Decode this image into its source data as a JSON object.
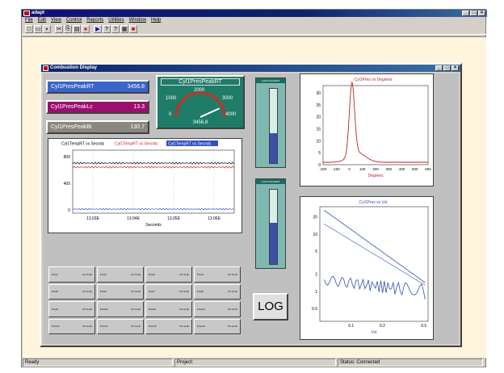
{
  "app": {
    "title": "adapt"
  },
  "window_controls": {
    "minimize": "_",
    "maximize": "□",
    "close": "×"
  },
  "menu": [
    "File",
    "Edit",
    "View",
    "Control",
    "Reports",
    "Utilities",
    "Window",
    "Help"
  ],
  "toolbar": {
    "buttons": [
      {
        "name": "new",
        "glyph": "□"
      },
      {
        "name": "open",
        "glyph": "▭"
      },
      {
        "name": "save",
        "glyph": "▪"
      },
      {
        "name": "cut",
        "glyph": "✂"
      },
      {
        "name": "copy",
        "glyph": "⎘"
      },
      {
        "name": "paste",
        "glyph": "▤"
      },
      {
        "name": "record",
        "glyph": "●"
      },
      {
        "name": "run",
        "glyph": "▶"
      },
      {
        "name": "help",
        "glyph": "?"
      },
      {
        "name": "context-help",
        "glyph": "?"
      },
      {
        "name": "print",
        "glyph": "▦"
      },
      {
        "name": "stop",
        "glyph": "■"
      }
    ]
  },
  "child_window": {
    "title": "Combustion Display"
  },
  "digital_displays": [
    {
      "label": "Cyl1PresPeakRT",
      "value": "3456.8",
      "color": "#3a64c8"
    },
    {
      "label": "Cyl1PresPeakLc",
      "value": "13.3",
      "color": "#9c0e6e"
    },
    {
      "label": "Cyl1PresPeakBi",
      "value": "130.7",
      "color": "#8c8680"
    }
  ],
  "gauge": {
    "title": "Cyl1PresPeakRT",
    "ticks": [
      "0",
      "1000",
      "2000",
      "3000",
      "4000"
    ],
    "value": "3456.8",
    "max": 4000,
    "reading": 3456.8
  },
  "vertical_bars": [
    {
      "title": "Cyl1PresPeakRT",
      "level": 0.4
    },
    {
      "title": "Cyl1PresPeakRT",
      "level": 0.55
    }
  ],
  "trend_plot": {
    "legend": [
      "Cyl1TempRT vs Secnds",
      "Cyl1TempRT vs Secnds",
      "Cyl1TempRT vs Secnds"
    ],
    "yticks": [
      "800",
      "400",
      "0"
    ],
    "xticks": [
      "13.03E",
      "13.04E",
      "13.05E",
      "13.06E"
    ],
    "xlabel": "Seconds",
    "colors": [
      "#000000",
      "#d02020",
      "#3050c0"
    ]
  },
  "pressure_plot": {
    "title": "Cyl1Pres vs Degrees",
    "yticks": [
      "30",
      "25",
      "20",
      "15",
      "10",
      "5",
      "0"
    ],
    "xticks": [
      "-200",
      "-100",
      "0",
      "100",
      "200",
      "300",
      "400",
      "500",
      "600"
    ],
    "xlabel": "Degrees",
    "color": "#c02020"
  },
  "pv_plot": {
    "title": "Cyl1Pres vs Vol",
    "yticks": [
      "20",
      "10",
      "5",
      "2",
      "1",
      "0.5"
    ],
    "xticks": [
      "0.1",
      "0.2",
      "0.5"
    ],
    "xlabel": "Vol",
    "color": "#3050b0"
  },
  "tiles": [
    {
      "label": "Pres1",
      "value": "0.0 Uunit"
    },
    {
      "label": "Pres2",
      "value": "0.0 Uunit"
    },
    {
      "label": "Pres3",
      "value": "0.0 Uunit"
    },
    {
      "label": "Pres4",
      "value": "0.0 Uunit"
    },
    {
      "label": "Pres5",
      "value": "0.0 Uunit"
    },
    {
      "label": "Pres6",
      "value": "0.0 Uunit"
    },
    {
      "label": "Pres7",
      "value": "0.0 Uunit"
    },
    {
      "label": "Pres8",
      "value": "0.0 Uunit"
    },
    {
      "label": "Pres9",
      "value": "0.0 Uunit"
    },
    {
      "label": "Pres10",
      "value": "0.0 Uunit"
    },
    {
      "label": "Pres11",
      "value": "0.0 Uunit"
    },
    {
      "label": "Pres12",
      "value": "0.0 Uunit"
    },
    {
      "label": "Pres13",
      "value": "0.0 Uunit"
    },
    {
      "label": "Pres14",
      "value": "0.0 Uunit"
    },
    {
      "label": "Pres15",
      "value": "0.0 Uunit"
    },
    {
      "label": "Pres16",
      "value": "0.0 Uunit"
    }
  ],
  "log_button": {
    "label": "LOG"
  },
  "status": {
    "left": "Ready",
    "mid": "Project:",
    "right": "Status: Connected"
  }
}
